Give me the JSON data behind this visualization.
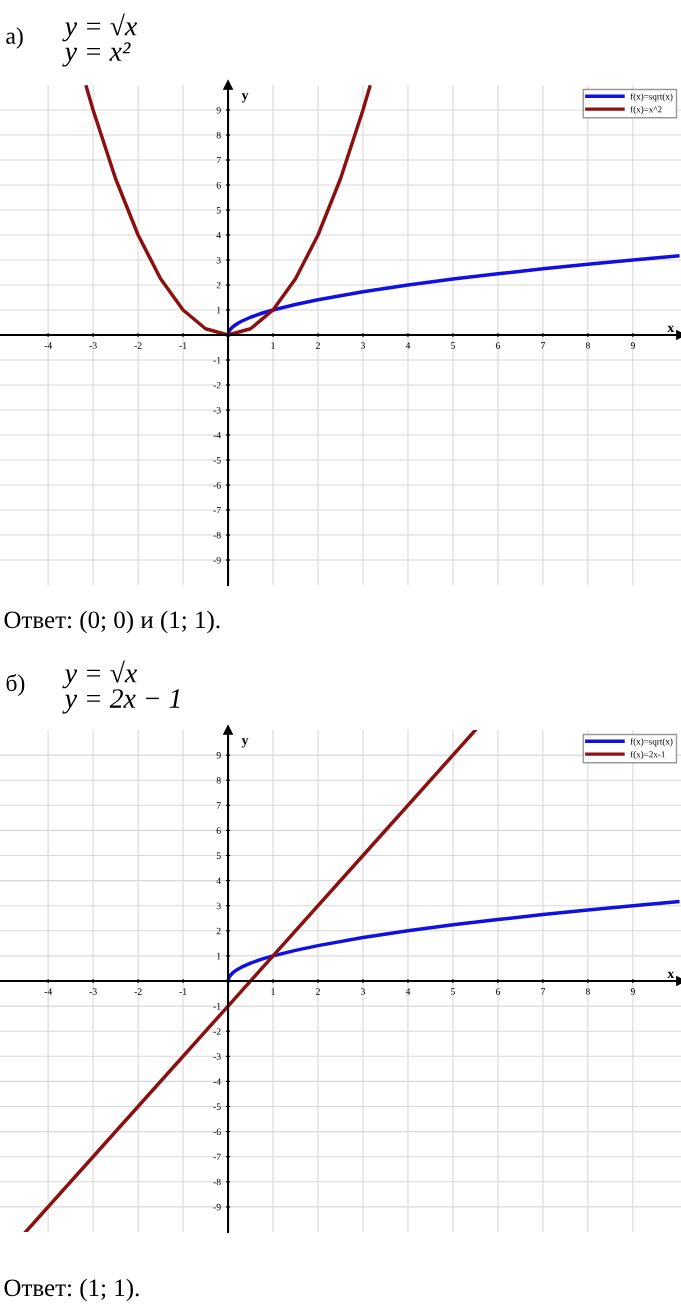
{
  "chart_data": [
    {
      "type": "line",
      "title": "а)",
      "subtitle": "y = √x\ny = x²",
      "xlabel": "x",
      "ylabel": "y",
      "xlim": [
        -5.07,
        10.07
      ],
      "ylim": [
        -10,
        10
      ],
      "xticks": [
        -4,
        -3,
        -2,
        -1,
        1,
        2,
        3,
        4,
        5,
        6,
        7,
        8,
        9
      ],
      "yticks": [
        -9,
        -8,
        -7,
        -6,
        -5,
        -4,
        -3,
        -2,
        -1,
        1,
        2,
        3,
        4,
        5,
        6,
        7,
        8,
        9
      ],
      "grid": true,
      "legend": "top right",
      "marker": "none",
      "line_style": "solid",
      "annotations": [
        "Ответ: (0; 0) и (1; 1)."
      ],
      "series": [
        {
          "name": "f(x)=sqrt(x)",
          "color": "#1010e0",
          "x": [
            0,
            0.02,
            0.05,
            0.1,
            0.2,
            0.3,
            0.5,
            0.75,
            1,
            1.5,
            2,
            3,
            4,
            5,
            6,
            7,
            8,
            9,
            10
          ],
          "values": [
            0,
            0.14,
            0.22,
            0.32,
            0.45,
            0.55,
            0.71,
            0.87,
            1,
            1.22,
            1.41,
            1.73,
            2,
            2.24,
            2.45,
            2.65,
            2.83,
            3,
            3.16
          ]
        },
        {
          "name": "f(x)=x^2",
          "color": "#8b1010",
          "x": [
            -3.15,
            -3,
            -2.5,
            -2,
            -1.5,
            -1,
            -0.5,
            0,
            0.5,
            1,
            1.5,
            2,
            2.5,
            3,
            3.15
          ],
          "values": [
            9.92,
            9,
            6.25,
            4,
            2.25,
            1,
            0.25,
            0,
            0.25,
            1,
            2.25,
            4,
            6.25,
            9,
            9.92
          ]
        }
      ]
    },
    {
      "type": "line",
      "title": "б)",
      "subtitle": "y = √x\ny = 2x − 1",
      "xlabel": "x",
      "ylabel": "y",
      "xlim": [
        -5.07,
        10.07
      ],
      "ylim": [
        -10,
        10
      ],
      "xticks": [
        -4,
        -3,
        -2,
        -1,
        1,
        2,
        3,
        4,
        5,
        6,
        7,
        8,
        9
      ],
      "yticks": [
        -9,
        -8,
        -7,
        -6,
        -5,
        -4,
        -3,
        -2,
        -1,
        1,
        2,
        3,
        4,
        5,
        6,
        7,
        8,
        9
      ],
      "grid": true,
      "legend": "top right",
      "marker": "none",
      "line_style": "solid",
      "annotations": [
        "Ответ: (1; 1)."
      ],
      "series": [
        {
          "name": "f(x)=sqrt(x)",
          "color": "#1010e0",
          "x": [
            0,
            0.02,
            0.05,
            0.1,
            0.2,
            0.3,
            0.5,
            0.75,
            1,
            1.5,
            2,
            3,
            4,
            5,
            6,
            7,
            8,
            9,
            10
          ],
          "values": [
            0,
            0.14,
            0.22,
            0.32,
            0.45,
            0.55,
            0.71,
            0.87,
            1,
            1.22,
            1.41,
            1.73,
            2,
            2.24,
            2.45,
            2.65,
            2.83,
            3,
            3.16
          ]
        },
        {
          "name": "f(x)=2x-1",
          "color": "#8b1010",
          "x": [
            -4.5,
            -2,
            0,
            1,
            3,
            5.5
          ],
          "values": [
            -10,
            -5,
            -1,
            1,
            5,
            10
          ]
        }
      ]
    }
  ]
}
